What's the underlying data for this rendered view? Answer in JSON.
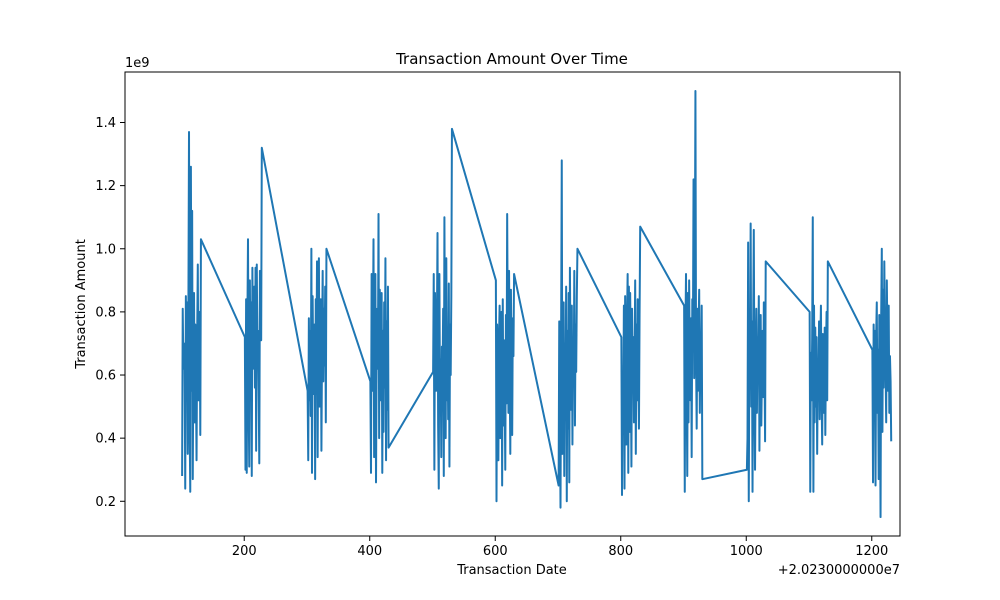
{
  "chart_data": {
    "type": "line",
    "title": "Transaction Amount Over Time",
    "xlabel": "Transaction Date",
    "ylabel": "Transaction Amount",
    "x_offset_label": "+2.0230000000e7",
    "y_scale_label": "1e9",
    "xlim": [
      20230010,
      20231245
    ],
    "ylim": [
      0.09,
      1.56
    ],
    "x_ticks": [
      200,
      400,
      600,
      800,
      1000,
      1200
    ],
    "x_tick_labels": [
      "200",
      "400",
      "600",
      "800",
      "1000",
      "1200"
    ],
    "y_ticks": [
      0.2,
      0.4,
      0.6,
      0.8,
      1.0,
      1.2,
      1.4
    ],
    "y_tick_labels": [
      "0.2",
      "0.4",
      "0.6",
      "0.8",
      "1.0",
      "1.2",
      "1.4"
    ],
    "grid": false,
    "series": [
      {
        "color": "#1f77b4",
        "x": [
          20230101,
          20230102,
          20230103,
          20230104,
          20230105,
          20230106,
          20230107,
          20230108,
          20230109,
          20230110,
          20230111,
          20230112,
          20230113,
          20230114,
          20230115,
          20230116,
          20230117,
          20230118,
          20230119,
          20230120,
          20230121,
          20230122,
          20230123,
          20230124,
          20230125,
          20230126,
          20230127,
          20230128,
          20230129,
          20230130,
          20230131,
          20230201,
          20230202,
          20230203,
          20230204,
          20230205,
          20230206,
          20230207,
          20230208,
          20230209,
          20230210,
          20230211,
          20230212,
          20230213,
          20230214,
          20230215,
          20230216,
          20230217,
          20230218,
          20230219,
          20230220,
          20230221,
          20230222,
          20230223,
          20230224,
          20230225,
          20230226,
          20230227,
          20230228,
          20230301,
          20230302,
          20230303,
          20230304,
          20230305,
          20230306,
          20230307,
          20230308,
          20230309,
          20230310,
          20230311,
          20230312,
          20230313,
          20230314,
          20230315,
          20230316,
          20230317,
          20230318,
          20230319,
          20230320,
          20230321,
          20230322,
          20230323,
          20230324,
          20230325,
          20230326,
          20230327,
          20230328,
          20230329,
          20230330,
          20230331,
          20230401,
          20230402,
          20230403,
          20230404,
          20230405,
          20230406,
          20230407,
          20230408,
          20230409,
          20230410,
          20230411,
          20230412,
          20230413,
          20230414,
          20230415,
          20230416,
          20230417,
          20230418,
          20230419,
          20230420,
          20230421,
          20230422,
          20230423,
          20230424,
          20230425,
          20230426,
          20230427,
          20230428,
          20230429,
          20230430,
          20230501,
          20230502,
          20230503,
          20230504,
          20230505,
          20230506,
          20230507,
          20230508,
          20230509,
          20230510,
          20230511,
          20230512,
          20230513,
          20230514,
          20230515,
          20230516,
          20230517,
          20230518,
          20230519,
          20230520,
          20230521,
          20230522,
          20230523,
          20230524,
          20230525,
          20230526,
          20230527,
          20230528,
          20230529,
          20230530,
          20230531,
          20230601,
          20230602,
          20230603,
          20230604,
          20230605,
          20230606,
          20230607,
          20230608,
          20230609,
          20230610,
          20230611,
          20230612,
          20230613,
          20230614,
          20230615,
          20230616,
          20230617,
          20230618,
          20230619,
          20230620,
          20230621,
          20230622,
          20230623,
          20230624,
          20230625,
          20230626,
          20230627,
          20230628,
          20230629,
          20230630,
          20230701,
          20230702,
          20230703,
          20230704,
          20230705,
          20230706,
          20230707,
          20230708,
          20230709,
          20230710,
          20230711,
          20230712,
          20230713,
          20230714,
          20230715,
          20230716,
          20230717,
          20230718,
          20230719,
          20230720,
          20230721,
          20230722,
          20230723,
          20230724,
          20230725,
          20230726,
          20230727,
          20230728,
          20230729,
          20230730,
          20230731,
          20230801,
          20230802,
          20230803,
          20230804,
          20230805,
          20230806,
          20230807,
          20230808,
          20230809,
          20230810,
          20230811,
          20230812,
          20230813,
          20230814,
          20230815,
          20230816,
          20230817,
          20230818,
          20230819,
          20230820,
          20230821,
          20230822,
          20230823,
          20230824,
          20230825,
          20230826,
          20230827,
          20230828,
          20230829,
          20230830,
          20230831,
          20230901,
          20230902,
          20230903,
          20230904,
          20230905,
          20230906,
          20230907,
          20230908,
          20230909,
          20230910,
          20230911,
          20230912,
          20230913,
          20230914,
          20230915,
          20230916,
          20230917,
          20230918,
          20230919,
          20230920,
          20230921,
          20230922,
          20230923,
          20230924,
          20230925,
          20230926,
          20230927,
          20230928,
          20230929,
          20230930,
          20231001,
          20231002,
          20231003,
          20231004,
          20231005,
          20231006,
          20231007,
          20231008,
          20231009,
          20231010,
          20231011,
          20231012,
          20231013,
          20231014,
          20231015,
          20231016,
          20231017,
          20231018,
          20231019,
          20231020,
          20231021,
          20231022,
          20231023,
          20231024,
          20231025,
          20231026,
          20231027,
          20231028,
          20231029,
          20231030,
          20231031,
          20231101,
          20231102,
          20231103,
          20231104,
          20231105,
          20231106,
          20231107,
          20231108,
          20231109,
          20231110,
          20231111,
          20231112,
          20231113,
          20231114,
          20231115,
          20231116,
          20231117,
          20231118,
          20231119,
          20231120,
          20231121,
          20231122,
          20231123,
          20231124,
          20231125,
          20231126,
          20231127,
          20231128,
          20231129,
          20231130,
          20231201,
          20231202,
          20231203,
          20231204,
          20231205,
          20231206,
          20231207,
          20231208,
          20231209,
          20231210,
          20231211,
          20231212,
          20231213,
          20231214,
          20231215,
          20231216,
          20231217,
          20231218,
          20231219,
          20231220,
          20231221,
          20231222,
          20231223,
          20231224,
          20231225,
          20231226,
          20231227,
          20231228,
          20231229,
          20231230,
          20231231
        ],
        "y": [
          0.28,
          0.81,
          0.62,
          0.7,
          0.64,
          0.24,
          0.85,
          0.52,
          0.83,
          0.35,
          0.79,
          1.37,
          0.44,
          0.23,
          1.26,
          0.55,
          1.12,
          0.27,
          0.7,
          0.86,
          0.45,
          0.76,
          0.6,
          0.33,
          0.72,
          0.95,
          0.52,
          0.64,
          0.8,
          0.41,
          1.03,
          0.72,
          0.3,
          0.84,
          0.29,
          0.76,
          1.03,
          0.53,
          0.31,
          0.9,
          0.55,
          0.83,
          0.28,
          0.94,
          0.62,
          0.78,
          0.88,
          0.56,
          0.94,
          0.36,
          0.95,
          0.66,
          0.74,
          0.55,
          0.32,
          0.93,
          0.87,
          0.71,
          1.32,
          0.55,
          0.33,
          0.78,
          0.52,
          0.74,
          0.47,
          1.0,
          0.29,
          0.85,
          0.6,
          0.54,
          0.76,
          0.27,
          0.84,
          0.62,
          0.96,
          0.34,
          0.85,
          0.97,
          0.5,
          0.72,
          0.84,
          0.36,
          0.69,
          0.93,
          0.58,
          0.81,
          0.63,
          0.88,
          0.45,
          1.0,
          0.58,
          0.29,
          0.92,
          0.55,
          0.7,
          1.03,
          0.34,
          0.61,
          0.92,
          0.26,
          0.65,
          0.81,
          0.62,
          1.11,
          0.4,
          0.87,
          0.52,
          0.68,
          0.86,
          0.29,
          0.74,
          0.42,
          0.83,
          0.56,
          0.97,
          0.33,
          0.77,
          0.49,
          0.88,
          0.37,
          0.61,
          0.92,
          0.3,
          0.86,
          0.67,
          0.55,
          0.74,
          1.05,
          0.44,
          0.24,
          0.92,
          0.5,
          0.65,
          0.34,
          0.69,
          0.58,
          0.81,
          0.28,
          1.1,
          0.62,
          0.4,
          0.97,
          0.52,
          0.73,
          0.46,
          0.89,
          0.31,
          0.76,
          0.6,
          0.85,
          1.38,
          0.9,
          0.2,
          0.76,
          0.52,
          0.33,
          0.72,
          0.82,
          0.4,
          0.64,
          0.8,
          0.25,
          0.84,
          0.44,
          0.71,
          0.56,
          0.3,
          0.79,
          0.51,
          1.11,
          0.72,
          0.48,
          0.93,
          0.62,
          0.35,
          0.87,
          0.57,
          0.41,
          0.78,
          0.66,
          0.92,
          0.25,
          0.77,
          0.5,
          0.18,
          0.75,
          1.28,
          0.35,
          0.62,
          0.83,
          0.28,
          0.7,
          0.55,
          0.88,
          0.2,
          0.74,
          0.43,
          0.86,
          0.26,
          0.94,
          0.62,
          0.49,
          0.82,
          0.38,
          0.71,
          0.57,
          0.93,
          0.44,
          0.76,
          0.61,
          0.85,
          1.0,
          0.72,
          0.22,
          0.6,
          0.47,
          0.82,
          0.24,
          0.85,
          0.53,
          0.38,
          0.78,
          0.92,
          0.29,
          0.88,
          0.42,
          0.86,
          0.66,
          0.31,
          0.81,
          0.57,
          0.72,
          0.45,
          0.63,
          0.9,
          0.35,
          0.76,
          0.52,
          0.84,
          0.61,
          0.43,
          0.79,
          1.07,
          0.82,
          0.23,
          0.72,
          0.92,
          0.58,
          0.28,
          0.86,
          0.45,
          0.9,
          0.62,
          0.52,
          0.78,
          0.34,
          0.84,
          0.7,
          1.22,
          0.59,
          0.88,
          1.5,
          0.66,
          0.43,
          0.81,
          0.55,
          0.74,
          0.87,
          0.48,
          0.71,
          0.64,
          0.82,
          0.27,
          0.3,
          0.4,
          1.02,
          0.2,
          0.7,
          0.58,
          1.08,
          0.5,
          0.77,
          0.23,
          0.74,
          1.06,
          0.56,
          0.3,
          0.63,
          0.81,
          0.48,
          0.72,
          0.59,
          0.85,
          0.36,
          0.68,
          0.79,
          0.44,
          0.61,
          0.74,
          0.53,
          0.83,
          0.65,
          0.39,
          0.96,
          0.8,
          0.23,
          0.67,
          0.52,
          0.71,
          1.1,
          0.23,
          0.82,
          0.45,
          0.75,
          0.5,
          0.72,
          0.35,
          0.62,
          0.58,
          0.77,
          0.46,
          0.69,
          0.82,
          0.54,
          0.38,
          0.73,
          0.6,
          0.48,
          0.75,
          0.41,
          0.66,
          0.8,
          0.52,
          0.96,
          0.68,
          0.26,
          0.76,
          0.55,
          0.74,
          0.25,
          0.72,
          0.83,
          0.48,
          0.68,
          0.27,
          0.79,
          0.6,
          0.15,
          0.78,
          1.0,
          0.42,
          0.87,
          0.56,
          0.96,
          0.72,
          0.63,
          0.45,
          0.9,
          0.7,
          0.55,
          0.82,
          0.48,
          0.66,
          0.58,
          0.39
        ]
      }
    ]
  }
}
